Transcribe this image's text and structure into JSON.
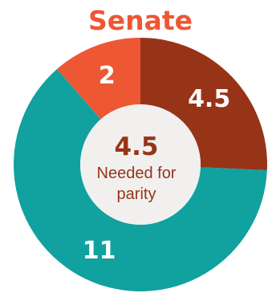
{
  "chart_data": {
    "type": "pie",
    "title": "Senate",
    "categories": [
      "",
      "",
      ""
    ],
    "values": [
      4.5,
      11,
      2
    ],
    "value_labels": [
      "4.5",
      "11",
      "2"
    ],
    "colors": [
      "#973418",
      "#11A19F",
      "#EE5733"
    ],
    "center": {
      "value": "4.5",
      "line1": "Needed for",
      "line2": "parity"
    },
    "center_color": "#973418",
    "title_color": "#EE5733",
    "start_angle_deg": 0,
    "direction": "clockwise"
  }
}
